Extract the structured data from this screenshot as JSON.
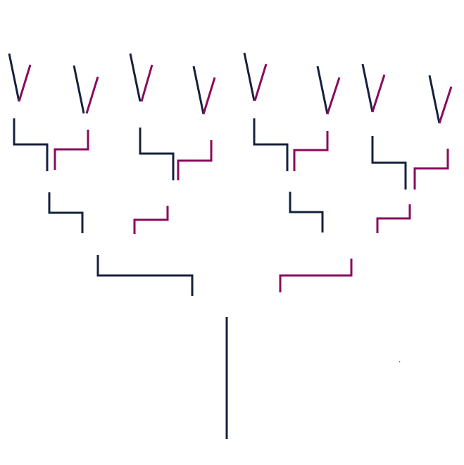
{
  "colors": {
    "left_branch": "#14213d",
    "right_branch": "#8a0a5e",
    "background": "#ffffff"
  }
}
